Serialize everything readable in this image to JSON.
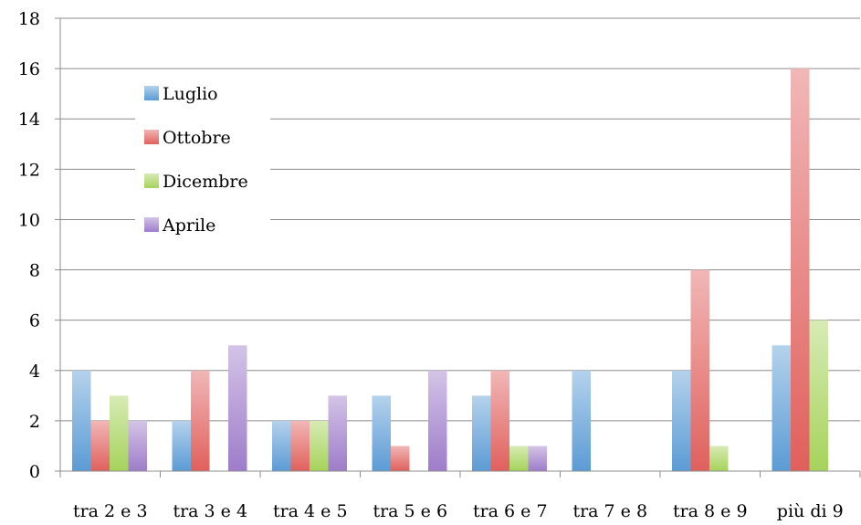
{
  "chart_data": {
    "type": "bar",
    "title": "",
    "xlabel": "",
    "ylabel": "",
    "ylim": [
      0,
      18
    ],
    "yticks": [
      0,
      2,
      4,
      6,
      8,
      10,
      12,
      14,
      16,
      18
    ],
    "grid": true,
    "legend_position": "top-left",
    "categories": [
      "tra 2 e 3",
      "tra 3 e 4",
      "tra 4 e 5",
      "tra 5 e 6",
      "tra 6 e 7",
      "tra 7 e 8",
      "tra 8 e 9",
      "più di 9"
    ],
    "series": [
      {
        "name": "Luglio",
        "color": "#5b9bd5",
        "values": [
          4,
          2,
          2,
          3,
          3,
          4,
          4,
          5
        ]
      },
      {
        "name": "Ottobre",
        "color": "#e0605c",
        "values": [
          2,
          4,
          2,
          1,
          4,
          0,
          8,
          16
        ]
      },
      {
        "name": "Dicembre",
        "color": "#a5d35a",
        "values": [
          3,
          0,
          2,
          0,
          1,
          0,
          1,
          6
        ]
      },
      {
        "name": "Aprile",
        "color": "#9e7cc9",
        "values": [
          2,
          5,
          3,
          4,
          1,
          0,
          0,
          0
        ]
      }
    ]
  }
}
